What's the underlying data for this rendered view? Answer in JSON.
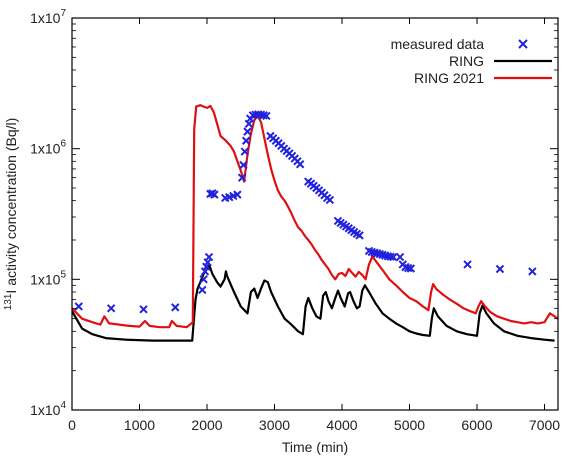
{
  "chart_data": {
    "type": "line",
    "title": "",
    "xlabel": "Time (min)",
    "ylabel_prefix": "131",
    "ylabel_rest": "I activity concentration (Bq/l)",
    "xlim": [
      0,
      7200
    ],
    "ylim": [
      10000,
      10000000
    ],
    "yscale": "log",
    "grid": false,
    "legend_position": "top-right",
    "x_ticks": [
      0,
      1000,
      2000,
      3000,
      4000,
      5000,
      6000,
      7000
    ],
    "x_tick_labels": [
      "0",
      "1000",
      "2000",
      "3000",
      "4000",
      "5000",
      "6000",
      "7000"
    ],
    "y_ticks": [
      10000,
      100000,
      1000000,
      10000000
    ],
    "y_tick_labels": [
      {
        "base": "1x10",
        "exp": "4"
      },
      {
        "base": "1x10",
        "exp": "5"
      },
      {
        "base": "1x10",
        "exp": "6"
      },
      {
        "base": "1x10",
        "exp": "7"
      }
    ],
    "series": [
      {
        "name": "measured data",
        "style": "marker",
        "marker": "x",
        "color": "#2222dd",
        "points": [
          [
            100,
            62000
          ],
          [
            580,
            60000
          ],
          [
            1060,
            59000
          ],
          [
            1530,
            61000
          ],
          [
            1930,
            83000
          ],
          [
            1950,
            100000
          ],
          [
            1970,
            115000
          ],
          [
            1990,
            125000
          ],
          [
            2010,
            135000
          ],
          [
            2030,
            148000
          ],
          [
            2050,
            450000
          ],
          [
            2080,
            455000
          ],
          [
            2110,
            445000
          ],
          [
            2270,
            420000
          ],
          [
            2330,
            425000
          ],
          [
            2390,
            435000
          ],
          [
            2450,
            445000
          ],
          [
            2520,
            600000
          ],
          [
            2540,
            750000
          ],
          [
            2560,
            950000
          ],
          [
            2580,
            1150000
          ],
          [
            2600,
            1350000
          ],
          [
            2620,
            1550000
          ],
          [
            2640,
            1700000
          ],
          [
            2680,
            1800000
          ],
          [
            2720,
            1820000
          ],
          [
            2760,
            1830000
          ],
          [
            2800,
            1820000
          ],
          [
            2840,
            1800000
          ],
          [
            2880,
            1780000
          ],
          [
            2940,
            1250000
          ],
          [
            2980,
            1200000
          ],
          [
            3020,
            1150000
          ],
          [
            3060,
            1100000
          ],
          [
            3100,
            1050000
          ],
          [
            3140,
            1000000
          ],
          [
            3180,
            960000
          ],
          [
            3220,
            920000
          ],
          [
            3260,
            880000
          ],
          [
            3300,
            840000
          ],
          [
            3340,
            800000
          ],
          [
            3380,
            760000
          ],
          [
            3500,
            560000
          ],
          [
            3540,
            540000
          ],
          [
            3580,
            520000
          ],
          [
            3620,
            500000
          ],
          [
            3660,
            480000
          ],
          [
            3700,
            460000
          ],
          [
            3740,
            440000
          ],
          [
            3780,
            420000
          ],
          [
            3820,
            405000
          ],
          [
            3940,
            280000
          ],
          [
            3980,
            270000
          ],
          [
            4020,
            262000
          ],
          [
            4060,
            254000
          ],
          [
            4100,
            246000
          ],
          [
            4140,
            238000
          ],
          [
            4180,
            230000
          ],
          [
            4220,
            223000
          ],
          [
            4260,
            217000
          ],
          [
            4400,
            165000
          ],
          [
            4440,
            162000
          ],
          [
            4480,
            160000
          ],
          [
            4520,
            158000
          ],
          [
            4560,
            156000
          ],
          [
            4600,
            154000
          ],
          [
            4640,
            152000
          ],
          [
            4680,
            150000
          ],
          [
            4720,
            149000
          ],
          [
            4760,
            148000
          ],
          [
            4860,
            148000
          ],
          [
            4900,
            130000
          ],
          [
            4940,
            124000
          ],
          [
            4980,
            122000
          ],
          [
            5020,
            121000
          ],
          [
            5860,
            130000
          ],
          [
            6340,
            120000
          ],
          [
            6820,
            115000
          ]
        ]
      },
      {
        "name": "RING",
        "style": "line",
        "color": "#000000",
        "points": [
          [
            0,
            57000
          ],
          [
            150,
            42000
          ],
          [
            300,
            38000
          ],
          [
            500,
            35500
          ],
          [
            800,
            34500
          ],
          [
            1200,
            34000
          ],
          [
            1500,
            34000
          ],
          [
            1780,
            34000
          ],
          [
            1830,
            70000
          ],
          [
            1860,
            85000
          ],
          [
            1900,
            95000
          ],
          [
            1950,
            110000
          ],
          [
            2000,
            120000
          ],
          [
            2030,
            130000
          ],
          [
            2080,
            110000
          ],
          [
            2150,
            95000
          ],
          [
            2200,
            88000
          ],
          [
            2260,
            100000
          ],
          [
            2280,
            115000
          ],
          [
            2300,
            105000
          ],
          [
            2400,
            80000
          ],
          [
            2500,
            62000
          ],
          [
            2600,
            55000
          ],
          [
            2650,
            80000
          ],
          [
            2700,
            85000
          ],
          [
            2750,
            72000
          ],
          [
            2800,
            85000
          ],
          [
            2850,
            98000
          ],
          [
            2900,
            95000
          ],
          [
            2950,
            80000
          ],
          [
            3050,
            62000
          ],
          [
            3150,
            50000
          ],
          [
            3250,
            45000
          ],
          [
            3350,
            40000
          ],
          [
            3420,
            38000
          ],
          [
            3460,
            62000
          ],
          [
            3500,
            72000
          ],
          [
            3560,
            60000
          ],
          [
            3620,
            52000
          ],
          [
            3680,
            50000
          ],
          [
            3720,
            75000
          ],
          [
            3760,
            80000
          ],
          [
            3800,
            68000
          ],
          [
            3850,
            60000
          ],
          [
            3900,
            72000
          ],
          [
            3940,
            82000
          ],
          [
            3980,
            72000
          ],
          [
            4040,
            62000
          ],
          [
            4090,
            78000
          ],
          [
            4120,
            80000
          ],
          [
            4170,
            68000
          ],
          [
            4220,
            60000
          ],
          [
            4260,
            62000
          ],
          [
            4300,
            82000
          ],
          [
            4340,
            90000
          ],
          [
            4400,
            80000
          ],
          [
            4500,
            65000
          ],
          [
            4600,
            55000
          ],
          [
            4700,
            50000
          ],
          [
            4800,
            46000
          ],
          [
            4900,
            43000
          ],
          [
            5000,
            40000
          ],
          [
            5100,
            38500
          ],
          [
            5200,
            37500
          ],
          [
            5300,
            37000
          ],
          [
            5330,
            50000
          ],
          [
            5360,
            60000
          ],
          [
            5420,
            52000
          ],
          [
            5550,
            44000
          ],
          [
            5700,
            40000
          ],
          [
            5850,
            38000
          ],
          [
            6000,
            37000
          ],
          [
            6040,
            55000
          ],
          [
            6080,
            63000
          ],
          [
            6140,
            55000
          ],
          [
            6250,
            46000
          ],
          [
            6400,
            40000
          ],
          [
            6600,
            37000
          ],
          [
            6800,
            35500
          ],
          [
            7000,
            34500
          ],
          [
            7150,
            34000
          ]
        ]
      },
      {
        "name": "RING 2021",
        "style": "line",
        "color": "#e01010",
        "points": [
          [
            0,
            60000
          ],
          [
            150,
            50000
          ],
          [
            300,
            47000
          ],
          [
            420,
            45000
          ],
          [
            480,
            52000
          ],
          [
            550,
            46000
          ],
          [
            700,
            45000
          ],
          [
            850,
            44000
          ],
          [
            1000,
            43500
          ],
          [
            1080,
            48000
          ],
          [
            1150,
            44000
          ],
          [
            1300,
            43000
          ],
          [
            1440,
            43000
          ],
          [
            1480,
            48000
          ],
          [
            1550,
            44000
          ],
          [
            1700,
            43000
          ],
          [
            1790,
            47000
          ],
          [
            1810,
            1400000
          ],
          [
            1840,
            2100000
          ],
          [
            1900,
            2150000
          ],
          [
            1950,
            2100000
          ],
          [
            2000,
            2050000
          ],
          [
            2050,
            2120000
          ],
          [
            2100,
            1900000
          ],
          [
            2150,
            1550000
          ],
          [
            2200,
            1250000
          ],
          [
            2280,
            1150000
          ],
          [
            2350,
            1050000
          ],
          [
            2400,
            950000
          ],
          [
            2450,
            800000
          ],
          [
            2500,
            680000
          ],
          [
            2550,
            560000
          ],
          [
            2600,
            900000
          ],
          [
            2650,
            1300000
          ],
          [
            2700,
            1650000
          ],
          [
            2750,
            1780000
          ],
          [
            2800,
            1600000
          ],
          [
            2850,
            1200000
          ],
          [
            2900,
            900000
          ],
          [
            2950,
            700000
          ],
          [
            3000,
            570000
          ],
          [
            3050,
            480000
          ],
          [
            3100,
            430000
          ],
          [
            3150,
            400000
          ],
          [
            3200,
            360000
          ],
          [
            3250,
            320000
          ],
          [
            3300,
            280000
          ],
          [
            3350,
            250000
          ],
          [
            3400,
            235000
          ],
          [
            3450,
            215000
          ],
          [
            3500,
            200000
          ],
          [
            3550,
            185000
          ],
          [
            3600,
            168000
          ],
          [
            3650,
            155000
          ],
          [
            3700,
            140000
          ],
          [
            3750,
            130000
          ],
          [
            3800,
            120000
          ],
          [
            3850,
            108000
          ],
          [
            3900,
            100000
          ],
          [
            3950,
            110000
          ],
          [
            4000,
            112000
          ],
          [
            4050,
            106000
          ],
          [
            4100,
            120000
          ],
          [
            4150,
            112000
          ],
          [
            4200,
            105000
          ],
          [
            4250,
            114000
          ],
          [
            4300,
            108000
          ],
          [
            4350,
            100000
          ],
          [
            4400,
            130000
          ],
          [
            4450,
            150000
          ],
          [
            4500,
            138000
          ],
          [
            4600,
            118000
          ],
          [
            4700,
            100000
          ],
          [
            4800,
            90000
          ],
          [
            4900,
            80000
          ],
          [
            5000,
            72000
          ],
          [
            5100,
            68000
          ],
          [
            5200,
            62000
          ],
          [
            5280,
            58000
          ],
          [
            5320,
            80000
          ],
          [
            5350,
            92000
          ],
          [
            5400,
            84000
          ],
          [
            5500,
            76000
          ],
          [
            5600,
            70000
          ],
          [
            5700,
            65000
          ],
          [
            5800,
            60000
          ],
          [
            5900,
            57000
          ],
          [
            5980,
            55000
          ],
          [
            6020,
            62000
          ],
          [
            6060,
            68000
          ],
          [
            6120,
            62000
          ],
          [
            6200,
            56000
          ],
          [
            6300,
            52000
          ],
          [
            6400,
            50000
          ],
          [
            6500,
            48000
          ],
          [
            6600,
            47000
          ],
          [
            6700,
            46000
          ],
          [
            6800,
            47000
          ],
          [
            6900,
            46000
          ],
          [
            7000,
            47000
          ],
          [
            7080,
            55000
          ],
          [
            7150,
            52000
          ],
          [
            7200,
            50000
          ]
        ]
      }
    ]
  }
}
